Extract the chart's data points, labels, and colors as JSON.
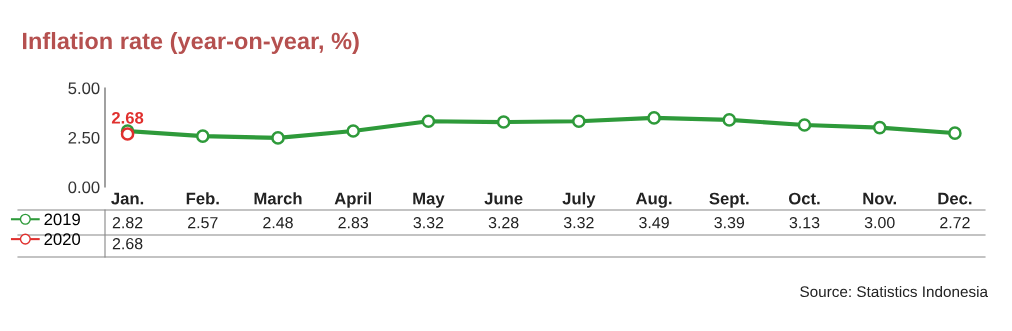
{
  "chart_data": {
    "type": "line",
    "title": "Inflation rate (year-on-year, %)",
    "categories": [
      "Jan.",
      "Feb.",
      "March",
      "April",
      "May",
      "June",
      "July",
      "Aug.",
      "Sept.",
      "Oct.",
      "Nov.",
      "Dec."
    ],
    "series": [
      {
        "name": "2019",
        "color": "#2e9a3a",
        "values": [
          2.82,
          2.57,
          2.48,
          2.83,
          3.32,
          3.28,
          3.32,
          3.49,
          3.39,
          3.13,
          3.0,
          2.72
        ],
        "value_labels": [
          "2.82",
          "2.57",
          "2.48",
          "2.83",
          "3.32",
          "3.28",
          "3.32",
          "3.49",
          "3.39",
          "3.13",
          "3.00",
          "2.72"
        ]
      },
      {
        "name": "2020",
        "color": "#e0302e",
        "values": [
          2.68,
          null,
          null,
          null,
          null,
          null,
          null,
          null,
          null,
          null,
          null,
          null
        ],
        "value_labels": [
          "2.68",
          null,
          null,
          null,
          null,
          null,
          null,
          null,
          null,
          null,
          null,
          null
        ]
      }
    ],
    "ylim": [
      0,
      5
    ],
    "yticks": [
      {
        "value": 0,
        "label": "0.00"
      },
      {
        "value": 2.5,
        "label": "2.50"
      },
      {
        "value": 5,
        "label": "5.00"
      }
    ],
    "grid": false,
    "marker": "circle",
    "line_style": "solid",
    "legend": "bottom",
    "annotations": [
      "Source: Statistics Indonesia"
    ]
  }
}
